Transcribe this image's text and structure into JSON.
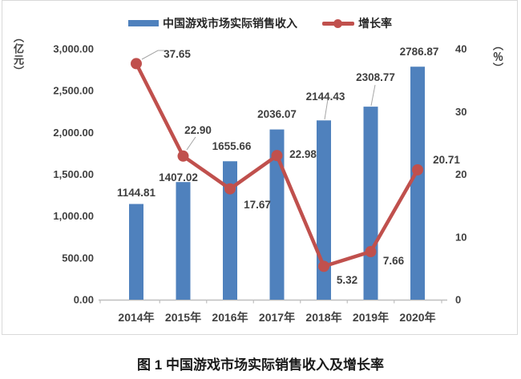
{
  "caption": "图 1  中国游戏市场实际销售收入及增长率",
  "legend": {
    "revenue_label": "中国游戏市场实际销售收入",
    "growth_label": "增长率"
  },
  "axes": {
    "left": {
      "unit": "（亿元）",
      "ticks": [
        "3,000.00",
        "2,500.00",
        "2,000.00",
        "1,500.00",
        "1,000.00",
        "500.00",
        "0.00"
      ]
    },
    "right": {
      "unit": "（％）",
      "ticks": [
        "40",
        "30",
        "20",
        "10",
        "0"
      ]
    },
    "x": {
      "labels": [
        "2014年",
        "2015年",
        "2016年",
        "2017年",
        "2018年",
        "2019年",
        "2020年"
      ]
    }
  },
  "chart_data": {
    "type": "combo",
    "categories": [
      "2014年",
      "2015年",
      "2016年",
      "2017年",
      "2018年",
      "2019年",
      "2020年"
    ],
    "series": [
      {
        "name": "中国游戏市场实际销售收入",
        "type": "bar",
        "axis": "left",
        "color": "#4f81bd",
        "values": [
          1144.81,
          1407.02,
          1655.66,
          2036.07,
          2144.43,
          2308.77,
          2786.87
        ],
        "labels": [
          "1144.81",
          "1407.02",
          "1655.66",
          "2036.07",
          "2144.43",
          "2308.77",
          "2786.87"
        ]
      },
      {
        "name": "增长率",
        "type": "line",
        "axis": "right",
        "color": "#c0504d",
        "values": [
          37.65,
          22.9,
          17.67,
          22.98,
          5.32,
          7.66,
          20.71
        ],
        "labels": [
          "37.65",
          "22.90",
          "17.67",
          "22.98",
          "5.32",
          "7.66",
          "20.71"
        ]
      }
    ],
    "title": "图 1  中国游戏市场实际销售收入及增长率",
    "ylabel_left": "（亿元）",
    "ylabel_right": "（％）",
    "ylim_left": [
      0,
      3000
    ],
    "ylim_right": [
      0,
      40
    ],
    "left_tick_values": [
      3000,
      2500,
      2000,
      1500,
      1000,
      500,
      0
    ],
    "right_tick_values": [
      40,
      30,
      20,
      10,
      0
    ],
    "grid": false,
    "legend_position": "top"
  },
  "colors": {
    "bar": "#4f81bd",
    "line": "#c0504d",
    "axis": "#bfbfbf",
    "label_text": "#3f3f3f",
    "leader": "#a6a6a6",
    "border": "#d9d9d9"
  }
}
